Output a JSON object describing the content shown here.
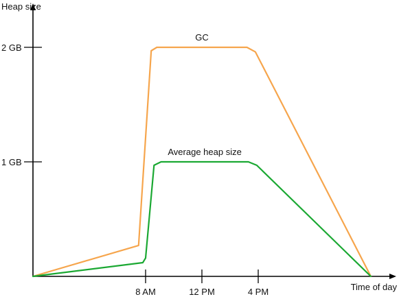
{
  "chart_data": {
    "type": "line",
    "title": "",
    "xlabel": "Time of day",
    "ylabel": "Heap size",
    "x_ticks": [
      {
        "hour": 8,
        "label": "8 AM"
      },
      {
        "hour": 12,
        "label": "12 PM"
      },
      {
        "hour": 16,
        "label": "4 PM"
      }
    ],
    "y_ticks": [
      {
        "value": 1,
        "label": "1 GB"
      },
      {
        "value": 2,
        "label": "2 GB"
      }
    ],
    "xlim": [
      0,
      24
    ],
    "ylim": [
      0,
      2.2
    ],
    "grid": false,
    "legend": "none",
    "series": [
      {
        "name": "GC",
        "color": "#f6a54c",
        "points": [
          {
            "x": 0,
            "y": 0
          },
          {
            "x": 7.5,
            "y": 0.27
          },
          {
            "x": 8.4,
            "y": 1.97
          },
          {
            "x": 8.8,
            "y": 2.0
          },
          {
            "x": 15.2,
            "y": 2.0
          },
          {
            "x": 15.8,
            "y": 1.96
          },
          {
            "x": 24,
            "y": 0
          }
        ]
      },
      {
        "name": "Average heap size",
        "color": "#1aa832",
        "points": [
          {
            "x": 0,
            "y": 0
          },
          {
            "x": 7.8,
            "y": 0.12
          },
          {
            "x": 8.0,
            "y": 0.16
          },
          {
            "x": 8.6,
            "y": 0.97
          },
          {
            "x": 9.1,
            "y": 1.0
          },
          {
            "x": 15.3,
            "y": 1.0
          },
          {
            "x": 15.9,
            "y": 0.97
          },
          {
            "x": 24,
            "y": 0
          }
        ]
      }
    ]
  }
}
